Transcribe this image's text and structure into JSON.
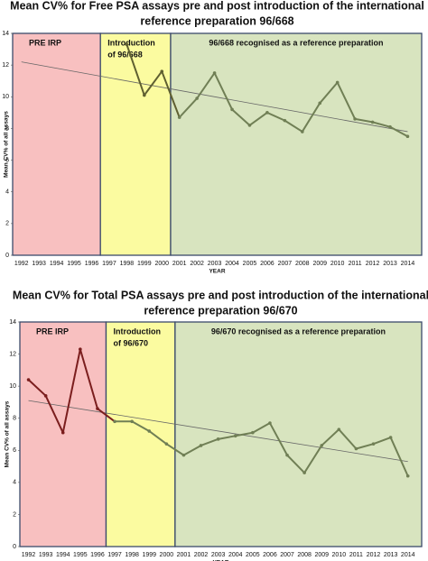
{
  "chart_data": [
    {
      "type": "line",
      "title": [
        "Mean CV% for Free PSA assays pre and post introduction of the international",
        "reference preparation 96/668"
      ],
      "xlabel": "YEAR",
      "ylabel": "Mean CV% of all assays",
      "categories": [
        "1992",
        "1993",
        "1994",
        "1995",
        "1996",
        "1997",
        "1998",
        "1999",
        "2000",
        "2001",
        "2002",
        "2003",
        "2004",
        "2005",
        "2006",
        "2007",
        "2008",
        "2009",
        "2010",
        "2011",
        "2012",
        "2013",
        "2014"
      ],
      "values": [
        null,
        null,
        null,
        null,
        null,
        null,
        13.3,
        10.1,
        11.6,
        8.7,
        9.9,
        11.5,
        9.2,
        8.2,
        9.0,
        8.5,
        7.8,
        9.6,
        10.9,
        8.6,
        8.4,
        8.1,
        7.5
      ],
      "trend": [
        12.2,
        7.8
      ],
      "ylim": [
        0,
        14
      ],
      "yticks": [
        0,
        2,
        4,
        6,
        8,
        10,
        12,
        14
      ],
      "regions": [
        {
          "label": [
            "PRE IRP"
          ],
          "end": 1996.5,
          "color": "#f8c0c0",
          "line_color": "#7b1e1e"
        },
        {
          "label": [
            "Introduction",
            "of 96/668"
          ],
          "end": 2000.5,
          "color": "#fbfba0",
          "line_color": "#5f5f30"
        },
        {
          "label": [
            "96/668 recognised as a reference preparation"
          ],
          "end": 2014.9,
          "color": "#d8e4bf",
          "line_color": "#707f55"
        }
      ]
    },
    {
      "type": "line",
      "title": [
        "Mean CV% for Total PSA assays pre and post introduction of the international",
        "reference preparation 96/670"
      ],
      "xlabel": "YEAR",
      "ylabel": "Mean CV% of all assays",
      "categories": [
        "1992",
        "1993",
        "1994",
        "1995",
        "1996",
        "1997",
        "1998",
        "1999",
        "2000",
        "2001",
        "2002",
        "2003",
        "2004",
        "2005",
        "2006",
        "2007",
        "2008",
        "2009",
        "2010",
        "2011",
        "2012",
        "2013",
        "2014"
      ],
      "values": [
        10.4,
        9.4,
        7.1,
        12.3,
        8.6,
        7.8,
        7.8,
        7.2,
        6.4,
        5.7,
        6.3,
        6.7,
        6.9,
        7.1,
        7.7,
        5.7,
        4.6,
        6.3,
        7.3,
        6.1,
        6.4,
        6.8,
        4.4
      ],
      "trend": [
        9.1,
        5.3
      ],
      "ylim": [
        0,
        14
      ],
      "yticks": [
        0,
        2,
        4,
        6,
        8,
        10,
        12,
        14
      ],
      "regions": [
        {
          "label": [
            "PRE IRP"
          ],
          "end": 1996.5,
          "color": "#f8c0c0",
          "line_color": "#7b1e1e"
        },
        {
          "label": [
            "Introduction",
            "of 96/670"
          ],
          "end": 2000.5,
          "color": "#fbfba0",
          "line_color": "#707f55"
        },
        {
          "label": [
            "96/670 recognised as a reference preparation"
          ],
          "end": 2014.9,
          "color": "#d8e4bf",
          "line_color": "#707f55"
        }
      ]
    }
  ]
}
